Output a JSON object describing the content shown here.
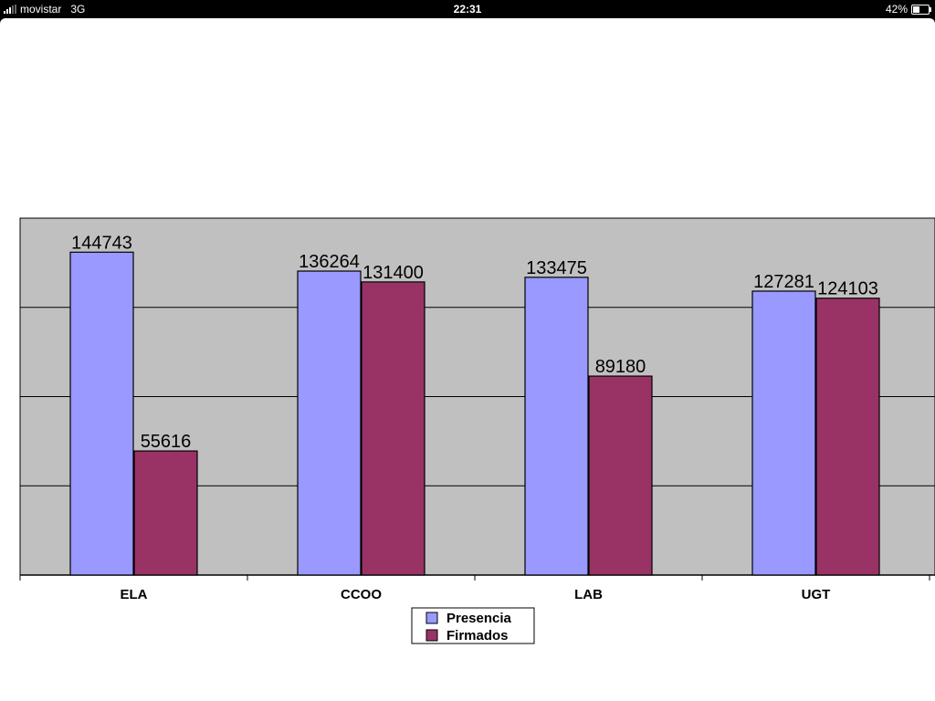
{
  "status_bar": {
    "carrier": "movistar",
    "network": "3G",
    "time": "22:31",
    "battery": "42%",
    "battery_level": 0.42
  },
  "chart_data": {
    "type": "bar",
    "categories": [
      "ELA",
      "CCOO",
      "LAB",
      "UGT"
    ],
    "series": [
      {
        "name": "Presencia",
        "values": [
          144743,
          136264,
          133475,
          127281
        ],
        "color": "#9999ff"
      },
      {
        "name": "Firmados",
        "values": [
          55616,
          131400,
          89180,
          124103
        ],
        "color": "#993366"
      }
    ],
    "data_labels": true,
    "ylim": [
      0,
      160000
    ],
    "y_grid_step": 40000,
    "grid": true,
    "plot_background": "#c0c0c0",
    "legend_position": "bottom"
  }
}
